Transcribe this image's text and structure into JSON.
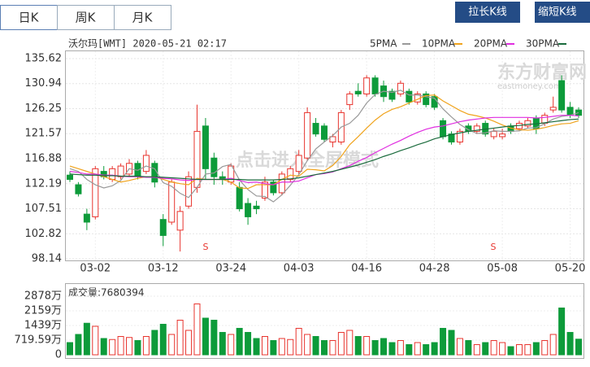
{
  "tabs": [
    "日K",
    "周K",
    "月K"
  ],
  "buttons": [
    "拉长K线",
    "缩短K线"
  ],
  "watermark": [
    "东方财富网",
    "eastmoney.com",
    "点击进入全屏模式"
  ],
  "chart_data": [
    {
      "type": "candlestick",
      "title": "沃尔玛[WMT] 2020-05-21 02:17",
      "up_color": "#e8342e",
      "down_color": "#0d9b3a",
      "categories": [
        null,
        null,
        null,
        "03-02",
        null,
        null,
        null,
        null,
        null,
        null,
        null,
        "03-12",
        null,
        null,
        null,
        null,
        null,
        null,
        null,
        "03-24",
        null,
        null,
        null,
        null,
        null,
        null,
        null,
        "04-03",
        null,
        null,
        null,
        null,
        null,
        null,
        null,
        "04-16",
        null,
        null,
        null,
        null,
        null,
        null,
        null,
        "04-28",
        null,
        null,
        null,
        null,
        null,
        null,
        null,
        "05-08",
        null,
        null,
        null,
        null,
        null,
        null,
        null,
        "05-20",
        null
      ],
      "open": [
        113.8,
        112.0,
        106.5,
        106.0,
        114.5,
        113.0,
        113.5,
        114.0,
        116.0,
        114.5,
        116.0,
        105.5,
        105.0,
        103.5,
        108.0,
        111.5,
        123.0,
        117.0,
        113.5,
        112.5,
        111.5,
        108.5,
        108.0,
        109.5,
        112.5,
        110.5,
        113.0,
        114.5,
        117.0,
        123.5,
        123.0,
        120.0,
        120.0,
        127.0,
        129.5,
        129.0,
        132.0,
        130.5,
        129.5,
        129.0,
        129.5,
        127.5,
        129.0,
        128.5,
        124.0,
        121.5,
        120.0,
        123.0,
        122.0,
        123.5,
        121.0,
        121.0,
        123.0,
        122.5,
        123.0,
        124.5,
        123.5,
        126.0,
        131.5,
        126.5,
        126.0
      ],
      "high": [
        114.5,
        112.5,
        107.5,
        115.5,
        115.5,
        115.5,
        116.0,
        116.8,
        116.5,
        118.5,
        116.5,
        106.5,
        113.0,
        108.0,
        114.5,
        127.0,
        124.5,
        118.0,
        114.5,
        116.0,
        112.5,
        109.5,
        109.0,
        113.5,
        113.0,
        114.5,
        115.5,
        118.5,
        126.5,
        124.5,
        123.5,
        121.5,
        126.0,
        129.5,
        131.0,
        132.5,
        132.5,
        131.5,
        130.0,
        131.5,
        130.0,
        129.5,
        129.5,
        129.0,
        124.5,
        122.0,
        122.5,
        123.5,
        123.5,
        124.0,
        122.5,
        122.5,
        123.5,
        124.0,
        124.5,
        125.0,
        125.5,
        128.5,
        132.5,
        127.5,
        126.5
      ],
      "low": [
        112.5,
        109.8,
        103.5,
        105.5,
        113.0,
        112.5,
        113.0,
        113.5,
        113.0,
        114.0,
        111.5,
        100.5,
        104.5,
        99.5,
        107.5,
        110.5,
        113.0,
        112.0,
        112.0,
        112.0,
        107.0,
        104.5,
        106.5,
        109.0,
        110.0,
        110.0,
        112.5,
        114.0,
        116.5,
        121.0,
        120.0,
        119.0,
        119.5,
        126.0,
        128.5,
        128.5,
        128.5,
        127.5,
        127.5,
        128.5,
        127.0,
        127.0,
        126.5,
        126.0,
        120.5,
        119.5,
        119.5,
        121.5,
        121.5,
        121.0,
        120.5,
        120.5,
        121.5,
        122.0,
        122.5,
        121.5,
        123.0,
        125.5,
        125.5,
        124.5,
        124.5
      ],
      "close": [
        113.0,
        110.3,
        105.0,
        115.0,
        113.5,
        115.0,
        115.5,
        116.0,
        113.5,
        117.5,
        112.5,
        102.5,
        112.5,
        107.0,
        113.5,
        122.0,
        115.0,
        113.5,
        113.0,
        115.5,
        107.5,
        106.0,
        107.5,
        112.5,
        110.5,
        114.0,
        115.0,
        117.5,
        125.5,
        121.5,
        120.5,
        121.0,
        125.5,
        129.0,
        129.0,
        132.0,
        129.0,
        128.5,
        128.0,
        131.0,
        127.5,
        129.0,
        127.0,
        126.5,
        121.0,
        120.0,
        122.0,
        122.0,
        123.0,
        121.5,
        122.0,
        121.5,
        122.0,
        123.5,
        124.0,
        122.5,
        125.0,
        126.5,
        126.0,
        125.0,
        125.0
      ],
      "series": [
        {
          "name": "5PMA",
          "color": "#999999",
          "values": [
            115,
            114.5,
            113,
            112,
            111.4,
            111.8,
            112.8,
            115.0,
            114.7,
            115.5,
            115.0,
            112.4,
            111.7,
            110.4,
            109.6,
            111.5,
            114.0,
            114.2,
            115.4,
            115.8,
            112.9,
            111.1,
            109.9,
            109.8,
            108.8,
            110.1,
            111.9,
            113.9,
            116.5,
            118.7,
            120.0,
            121.2,
            122.8,
            123.5,
            125.0,
            127.3,
            128.9,
            129.5,
            129.3,
            129.7,
            128.8,
            128.8,
            128.5,
            128.2,
            126.2,
            124.7,
            123.3,
            122.3,
            121.6,
            121.7,
            122.1,
            122.0,
            122.0,
            122.1,
            122.6,
            122.7,
            123.4,
            124.3,
            124.8,
            125.0,
            125.5
          ]
        },
        {
          "name": "10PMA",
          "color": "#f0a31c",
          "values": [
            115.5,
            115,
            114.5,
            114,
            113.5,
            113,
            112.5,
            112.8,
            113.2,
            113.5,
            113.5,
            113,
            112.5,
            112.2,
            112,
            113.2,
            113,
            113,
            113,
            112.5,
            111.4,
            111.3,
            112,
            112,
            112,
            113,
            113.8,
            113.6,
            114.9,
            114.8,
            114.6,
            115.6,
            117.3,
            119.5,
            121,
            122.6,
            124.1,
            125.3,
            126.1,
            126.6,
            127.3,
            128,
            128.7,
            128.8,
            127.7,
            126.8,
            125.9,
            125.2,
            124.9,
            124.5,
            123.9,
            123.2,
            122.6,
            122.3,
            122.2,
            122.4,
            122.7,
            123.1,
            123.4,
            123.5,
            124
          ]
        },
        {
          "name": "20PMA",
          "color": "#e02ee0",
          "values": [
            114.5,
            114.3,
            114,
            114,
            113.8,
            113.8,
            113.6,
            113.5,
            113.5,
            113.4,
            113.4,
            113.2,
            113.1,
            112.9,
            112.8,
            113,
            113,
            113,
            113,
            113.2,
            112.8,
            112.4,
            112.5,
            112.2,
            112,
            112.5,
            112.5,
            112.7,
            113.3,
            113.9,
            114.1,
            114.4,
            115,
            115.6,
            116.4,
            117.1,
            118,
            118.8,
            119.6,
            120.3,
            121.1,
            121.8,
            122.4,
            122.8,
            123,
            123.4,
            123.8,
            124.1,
            124.3,
            124.5,
            124.6,
            124.6,
            124.6,
            124.6,
            124.6,
            124.5,
            124.6,
            124.8,
            125,
            125,
            124.9
          ]
        },
        {
          "name": "30PMA",
          "color": "#1a6b3c",
          "values": [
            114.0,
            113.9,
            113.8,
            113.8,
            113.7,
            113.7,
            113.6,
            113.6,
            113.6,
            113.5,
            113.5,
            113.4,
            113.3,
            113.2,
            113.1,
            113,
            113,
            113,
            113,
            113,
            113,
            112.9,
            112.9,
            112.9,
            112.9,
            113,
            113.1,
            113.3,
            113.6,
            113.9,
            114.2,
            114.5,
            114.9,
            115.3,
            115.7,
            116.2,
            116.7,
            117.3,
            117.8,
            118.4,
            118.9,
            119.5,
            120,
            120.6,
            121,
            121.4,
            121.7,
            122,
            122.2,
            122.4,
            122.6,
            122.8,
            123,
            123.1,
            123.3,
            123.4,
            123.6,
            123.8,
            124,
            124.2,
            124.3
          ]
        }
      ],
      "annotations": [
        "S",
        "S"
      ],
      "ylim": [
        98.14,
        135.62
      ],
      "yticks": [
        135.62,
        130.94,
        126.25,
        121.57,
        116.88,
        112.19,
        107.51,
        102.82,
        98.14
      ]
    },
    {
      "type": "bar",
      "title": "成交量:7680394",
      "values": [
        600,
        1000,
        1550,
        1400,
        800,
        750,
        900,
        850,
        700,
        900,
        1200,
        1500,
        1000,
        1700,
        1200,
        2500,
        1800,
        1700,
        1100,
        1000,
        1300,
        1100,
        800,
        900,
        700,
        800,
        750,
        1300,
        1000,
        900,
        700,
        700,
        1100,
        1200,
        900,
        900,
        700,
        800,
        600,
        700,
        500,
        600,
        500,
        600,
        1300,
        1200,
        800,
        700,
        500,
        600,
        700,
        600,
        400,
        500,
        500,
        600,
        700,
        1000,
        2300,
        1100,
        768.0394
      ],
      "ylim": [
        0,
        2878
      ],
      "yticks": [
        {
          "value": 2878,
          "label": "2878万"
        },
        {
          "value": 2159,
          "label": "2159万"
        },
        {
          "value": 1439,
          "label": "1439万"
        },
        {
          "value": 719.59,
          "label": "719.59万"
        },
        0
      ]
    }
  ]
}
